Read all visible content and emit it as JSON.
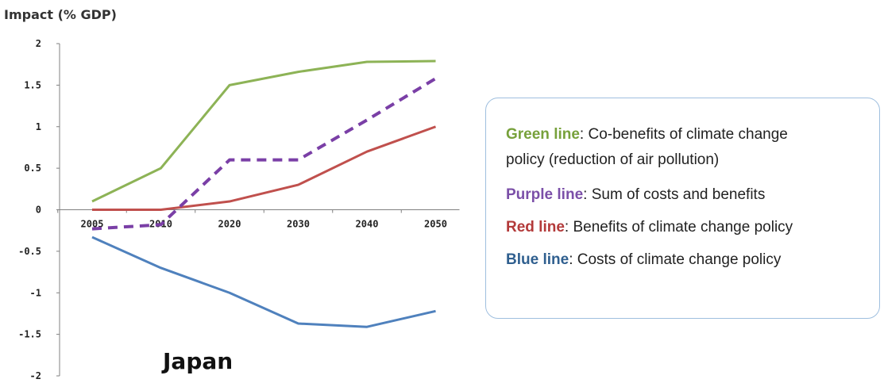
{
  "chart_data": {
    "type": "line",
    "title": "",
    "ylabel": "Impact (% GDP)",
    "xlabel": "",
    "annotation": "Japan",
    "x": [
      "2005",
      "2010",
      "2020",
      "2030",
      "2040",
      "2050"
    ],
    "ylim": [
      -2,
      2
    ],
    "yticks": [
      "2",
      "1.5",
      "1",
      "0.5",
      "0",
      "-0.5",
      "-1",
      "-1.5",
      "-2"
    ],
    "grid": false,
    "series": [
      {
        "key": "green",
        "color": "#8db356",
        "style": "solid",
        "values": [
          0.1,
          0.5,
          1.5,
          1.66,
          1.78,
          1.79
        ]
      },
      {
        "key": "purple",
        "color": "#7a3fa6",
        "style": "dashed",
        "values": [
          -0.23,
          -0.18,
          0.6,
          0.6,
          1.08,
          1.58
        ]
      },
      {
        "key": "red",
        "color": "#c0504d",
        "style": "solid",
        "values": [
          0.0,
          0.0,
          0.1,
          0.3,
          0.7,
          1.0
        ]
      },
      {
        "key": "blue",
        "color": "#4f81bd",
        "style": "solid",
        "values": [
          -0.33,
          -0.7,
          -1.0,
          -1.37,
          -1.41,
          -1.22
        ]
      }
    ]
  },
  "legend": {
    "items": [
      {
        "key": "Green line",
        "text": ": Co-benefits of climate change",
        "text2": "policy (reduction of air pollution)",
        "color": "#77a13b"
      },
      {
        "key": "Purple line",
        "text": ": Sum of costs and benefits",
        "color": "#7b4fa8"
      },
      {
        "key": "Red line",
        "text": ": Benefits of climate change policy",
        "color": "#b33a3a"
      },
      {
        "key": "Blue line",
        "text": ": Costs of climate change policy",
        "color": "#2f5f8f"
      }
    ]
  }
}
